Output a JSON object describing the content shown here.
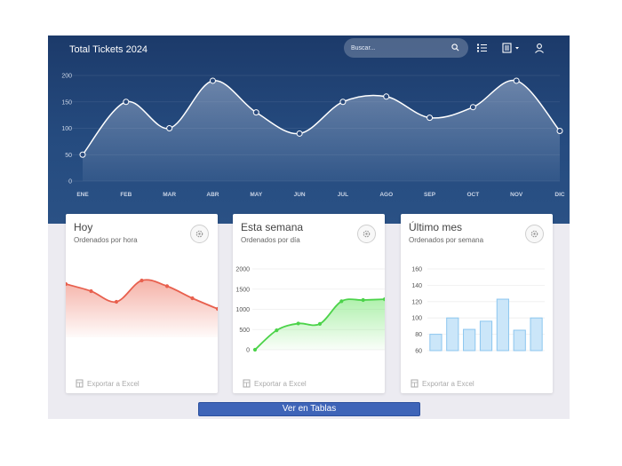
{
  "header": {
    "title": "Total  Tickets 2024",
    "search_placeholder": "Buscar..."
  },
  "icons": {
    "search": "search-icon",
    "list": "list-icon",
    "document": "document-icon",
    "user": "user-icon",
    "settings": "gear-icon",
    "export": "spreadsheet-icon"
  },
  "colors": {
    "header_bg": "#1c3a6a",
    "today_line": "#e8604e",
    "week_line": "#4cd34a",
    "month_bar": "#9fd0f3",
    "button": "#3e64b8"
  },
  "chart_data": [
    {
      "type": "area",
      "title": "Total  Tickets 2024",
      "categories": [
        "ENE",
        "FEB",
        "MAR",
        "ABR",
        "MAY",
        "JUN",
        "JUL",
        "AGO",
        "SEP",
        "OCT",
        "NOV",
        "DIC"
      ],
      "values": [
        50,
        150,
        100,
        190,
        130,
        90,
        150,
        160,
        120,
        140,
        190,
        95
      ],
      "yticks": [
        0,
        50,
        100,
        150,
        200
      ],
      "ylim": [
        0,
        200
      ],
      "grid": true
    },
    {
      "type": "area",
      "title": "Hoy",
      "subtitle": "Ordenados por hora",
      "values": [
        75,
        65,
        50,
        80,
        72,
        55,
        40
      ],
      "ylim": [
        0,
        100
      ],
      "grid": false
    },
    {
      "type": "area",
      "title": "Esta semana",
      "subtitle": "Ordenados por día",
      "values": [
        0,
        480,
        650,
        640,
        1200,
        1230,
        1250
      ],
      "yticks": [
        0,
        500,
        1000,
        1500,
        2000
      ],
      "ylim": [
        0,
        2000
      ],
      "grid": true
    },
    {
      "type": "bar",
      "title": "Último mes",
      "subtitle": "Ordenados por semana",
      "values": [
        80,
        100,
        86,
        96,
        123,
        85,
        100
      ],
      "yticks": [
        60,
        80,
        100,
        120,
        140,
        160
      ],
      "ylim": [
        60,
        160
      ],
      "grid": true
    }
  ],
  "cards": [
    {
      "title": "Hoy",
      "subtitle": "Ordenados por hora",
      "export_label": "Exportar a Excel"
    },
    {
      "title": "Esta semana",
      "subtitle": "Ordenados por día",
      "export_label": "Exportar a Excel"
    },
    {
      "title": "Último mes",
      "subtitle": "Ordenados por semana",
      "export_label": "Exportar a Excel"
    }
  ],
  "footer": {
    "button_label": "Ver en Tablas"
  }
}
